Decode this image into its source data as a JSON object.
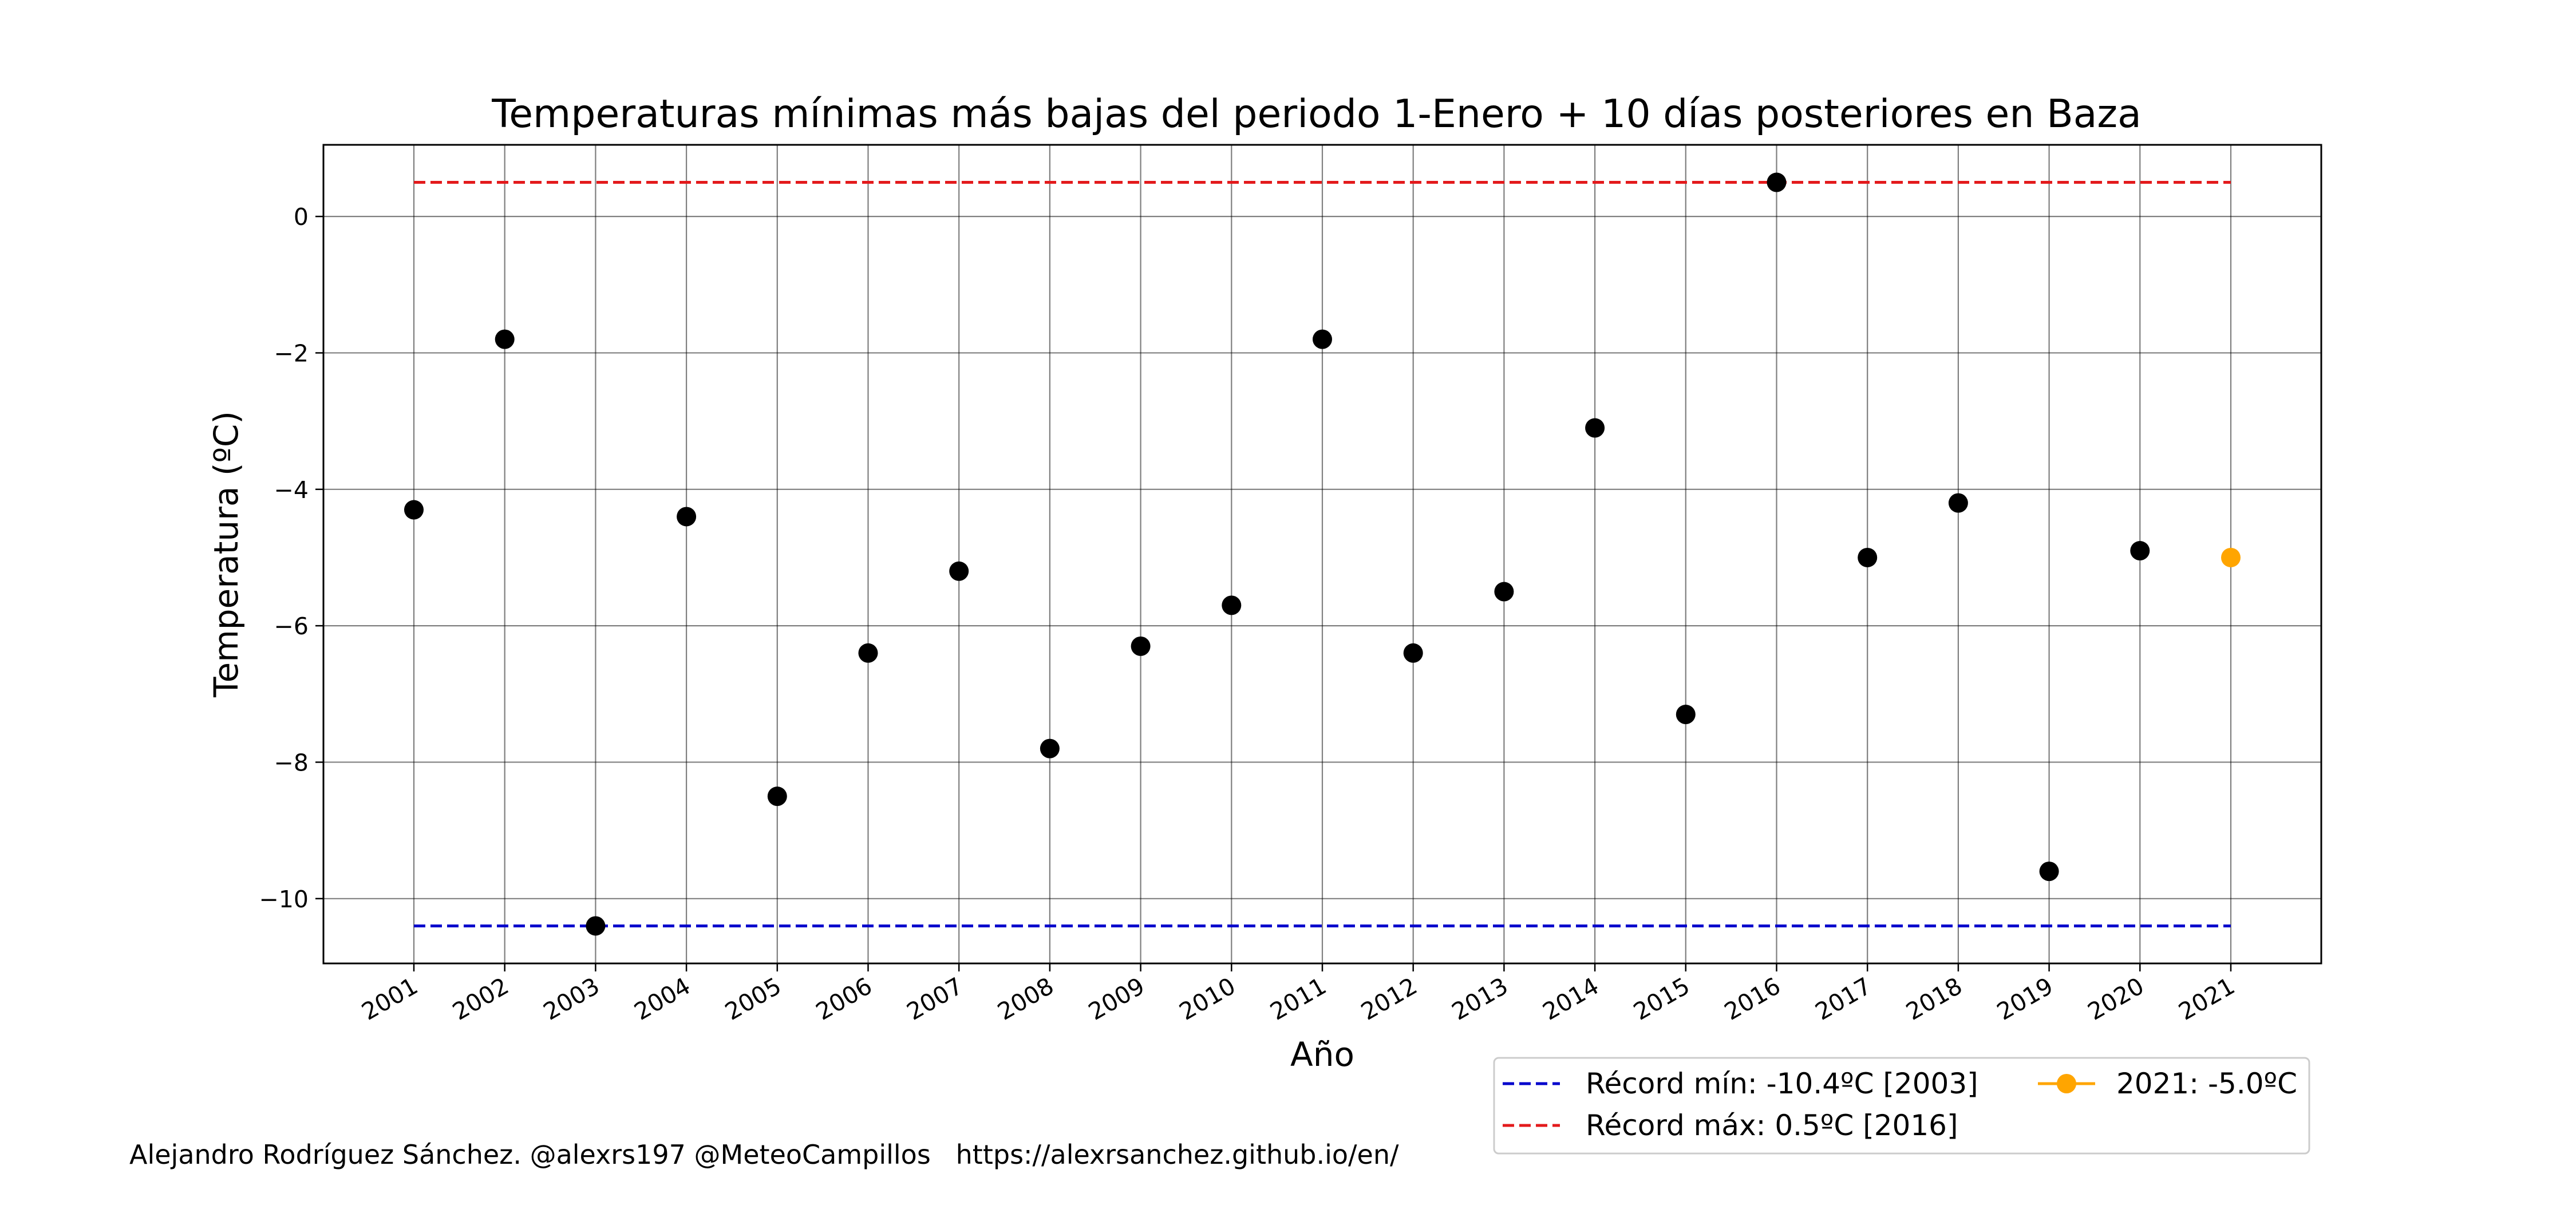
{
  "chart_data": {
    "type": "scatter",
    "title": "Temperaturas mínimas más bajas del periodo 1-Enero + 10 días posteriores en Baza",
    "xlabel": "Año",
    "ylabel": "Temperatura (ºC)",
    "categories": [
      "2001",
      "2002",
      "2003",
      "2004",
      "2005",
      "2006",
      "2007",
      "2008",
      "2009",
      "2010",
      "2011",
      "2012",
      "2013",
      "2014",
      "2015",
      "2016",
      "2017",
      "2018",
      "2019",
      "2020",
      "2021"
    ],
    "ylim": [
      -10.95,
      1.05
    ],
    "yticks": [
      0,
      -2,
      -4,
      -6,
      -8,
      -10
    ],
    "ytick_labels": [
      "0",
      "−2",
      "−4",
      "−6",
      "−8",
      "−10"
    ],
    "grid": true,
    "series": [
      {
        "color": "#000000",
        "marker": "circle",
        "x": [
          "2001",
          "2002",
          "2003",
          "2004",
          "2005",
          "2006",
          "2007",
          "2008",
          "2009",
          "2010",
          "2011",
          "2012",
          "2013",
          "2014",
          "2015",
          "2016",
          "2017",
          "2018",
          "2019",
          "2020"
        ],
        "values": [
          -4.3,
          -1.8,
          -10.4,
          -4.4,
          -8.5,
          -6.4,
          -5.2,
          -7.8,
          -6.3,
          -5.7,
          -1.8,
          -6.4,
          -5.5,
          -3.1,
          -7.3,
          0.5,
          -5.0,
          -4.2,
          -9.6,
          -4.9
        ]
      },
      {
        "name": "2021: -5.0ºC",
        "color": "#ffa500",
        "marker": "circle-line",
        "x": [
          "2021"
        ],
        "values": [
          -5.0
        ]
      }
    ],
    "reference_lines": [
      {
        "name": "Récord mín: -10.4ºC [2003]",
        "value": -10.4,
        "color": "#0000cc",
        "style": "dashed"
      },
      {
        "name": "Récord máx: 0.5ºC [2016]",
        "value": 0.5,
        "color": "#e31a1c",
        "style": "dashed"
      }
    ],
    "legend": {
      "placement": "bottom-right",
      "entries": [
        {
          "label": "Récord mín: -10.4ºC [2003]",
          "color": "#0000cc",
          "style": "dashed"
        },
        {
          "label": "Récord máx: 0.5ºC [2016]",
          "color": "#e31a1c",
          "style": "dashed"
        },
        {
          "label": "2021: -5.0ºC",
          "color": "#ffa500",
          "style": "line-marker"
        }
      ]
    }
  },
  "credit": "Alejandro Rodríguez Sánchez. @alexrs197 @MeteoCampillos   https://alexrsanchez.github.io/en/"
}
